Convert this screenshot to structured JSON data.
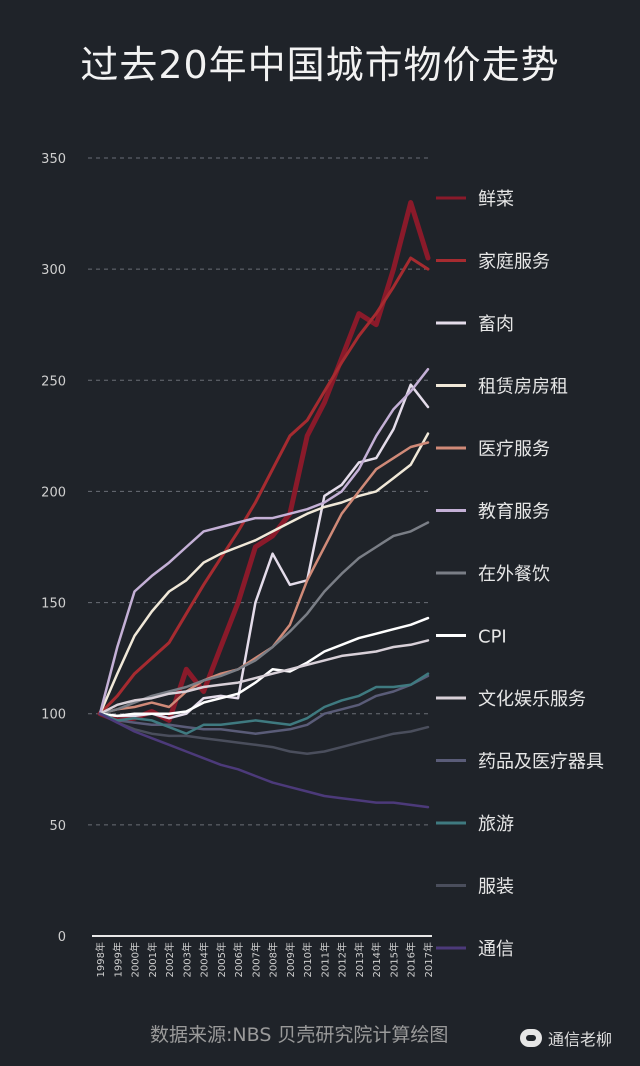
{
  "chart_data": {
    "type": "line",
    "title": "过去20年中国城市物价走势",
    "categories": [
      "1998年",
      "1999年",
      "2000年",
      "2001年",
      "2002年",
      "2003年",
      "2004年",
      "2005年",
      "2006年",
      "2007年",
      "2008年",
      "2009年",
      "2010年",
      "2011年",
      "2012年",
      "2013年",
      "2014年",
      "2015年",
      "2016年",
      "2017年"
    ],
    "ylim": [
      0,
      350
    ],
    "yticks": [
      0,
      50,
      100,
      150,
      200,
      250,
      300,
      350
    ],
    "grid": true,
    "legend_position": "right",
    "series": [
      {
        "name": "鲜菜",
        "color": "#8a1a2a",
        "width": 5,
        "values": [
          100,
          97,
          98,
          101,
          97,
          120,
          110,
          130,
          150,
          175,
          180,
          190,
          225,
          240,
          260,
          280,
          275,
          300,
          330,
          305
        ]
      },
      {
        "name": "家庭服务",
        "color": "#a62b30",
        "width": 3,
        "values": [
          100,
          108,
          118,
          125,
          132,
          145,
          158,
          170,
          182,
          195,
          210,
          225,
          232,
          245,
          258,
          270,
          280,
          292,
          305,
          300
        ]
      },
      {
        "name": "畜肉",
        "color": "#e4dcea",
        "width": 2.5,
        "values": [
          100,
          99,
          99,
          100,
          98,
          100,
          107,
          108,
          107,
          150,
          172,
          158,
          160,
          198,
          203,
          213,
          215,
          228,
          248,
          238
        ]
      },
      {
        "name": "租赁房房租",
        "color": "#f0e8d8",
        "width": 2.5,
        "values": [
          100,
          118,
          135,
          146,
          155,
          160,
          168,
          172,
          175,
          178,
          182,
          186,
          190,
          193,
          195,
          198,
          200,
          206,
          212,
          226
        ]
      },
      {
        "name": "医疗服务",
        "color": "#d08a78",
        "width": 2.5,
        "values": [
          100,
          102,
          103,
          105,
          103,
          110,
          115,
          118,
          120,
          125,
          130,
          140,
          160,
          175,
          190,
          200,
          210,
          215,
          220,
          222
        ]
      },
      {
        "name": "教育服务",
        "color": "#c4b0d6",
        "width": 2.5,
        "values": [
          100,
          130,
          155,
          162,
          168,
          175,
          182,
          184,
          186,
          188,
          188,
          190,
          192,
          195,
          200,
          210,
          225,
          237,
          245,
          255
        ]
      },
      {
        "name": "在外餐饮",
        "color": "#7a7e86",
        "width": 2.5,
        "values": [
          100,
          102,
          105,
          108,
          110,
          112,
          115,
          117,
          120,
          124,
          130,
          137,
          145,
          155,
          163,
          170,
          175,
          180,
          182,
          186
        ]
      },
      {
        "name": "CPI",
        "color": "#ffffff",
        "width": 2.5,
        "values": [
          100,
          99,
          100,
          100,
          100,
          101,
          105,
          107,
          109,
          114,
          120,
          119,
          123,
          128,
          131,
          134,
          136,
          138,
          140,
          143
        ]
      },
      {
        "name": "文化娱乐服务",
        "color": "#d8d0d8",
        "width": 2.5,
        "values": [
          100,
          104,
          106,
          107,
          109,
          110,
          112,
          113,
          114,
          116,
          118,
          120,
          122,
          124,
          126,
          127,
          128,
          130,
          131,
          133
        ]
      },
      {
        "name": "药品及医疗器具",
        "color": "#5a5c78",
        "width": 2.5,
        "values": [
          100,
          97,
          96,
          95,
          95,
          94,
          93,
          93,
          92,
          91,
          92,
          93,
          95,
          100,
          102,
          104,
          108,
          110,
          113,
          117
        ]
      },
      {
        "name": "旅游",
        "color": "#3f7a80",
        "width": 2.5,
        "values": [
          100,
          97,
          98,
          97,
          94,
          91,
          95,
          95,
          96,
          97,
          96,
          95,
          98,
          103,
          106,
          108,
          112,
          112,
          113,
          118
        ]
      },
      {
        "name": "服装",
        "color": "#4a4e5c",
        "width": 2.5,
        "values": [
          100,
          96,
          93,
          91,
          90,
          90,
          89,
          88,
          87,
          86,
          85,
          83,
          82,
          83,
          85,
          87,
          89,
          91,
          92,
          94
        ]
      },
      {
        "name": "通信",
        "color": "#4c3a7a",
        "width": 2.5,
        "values": [
          100,
          96,
          92,
          89,
          86,
          83,
          80,
          77,
          75,
          72,
          69,
          67,
          65,
          63,
          62,
          61,
          60,
          60,
          59,
          58
        ]
      }
    ]
  },
  "source": "数据来源:NBS   贝壳研究院计算绘图",
  "brand": "通信老柳"
}
